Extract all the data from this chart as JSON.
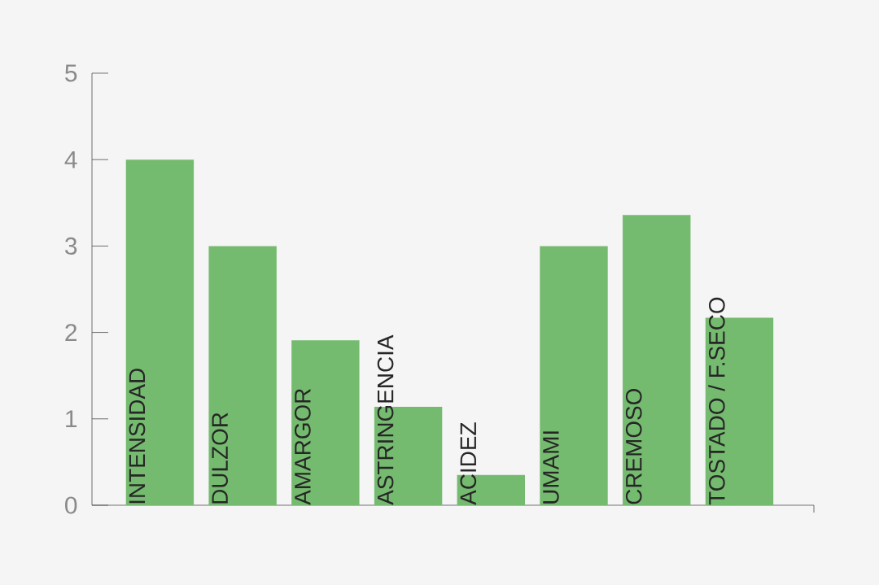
{
  "chart_data": {
    "type": "bar",
    "categories": [
      "INTENSIDAD",
      "DULZOR",
      "AMARGOR",
      "ASTRINGENCIA",
      "ACIDEZ",
      "UMAMI",
      "CREMOSO",
      "TOSTADO / F.SECO"
    ],
    "values": [
      4.0,
      3.0,
      1.91,
      1.14,
      0.35,
      3.0,
      3.36,
      2.17
    ],
    "color": "#75bb6f",
    "ylim": [
      0,
      5
    ],
    "yticks": [
      0,
      1,
      2,
      3,
      4,
      5
    ]
  }
}
